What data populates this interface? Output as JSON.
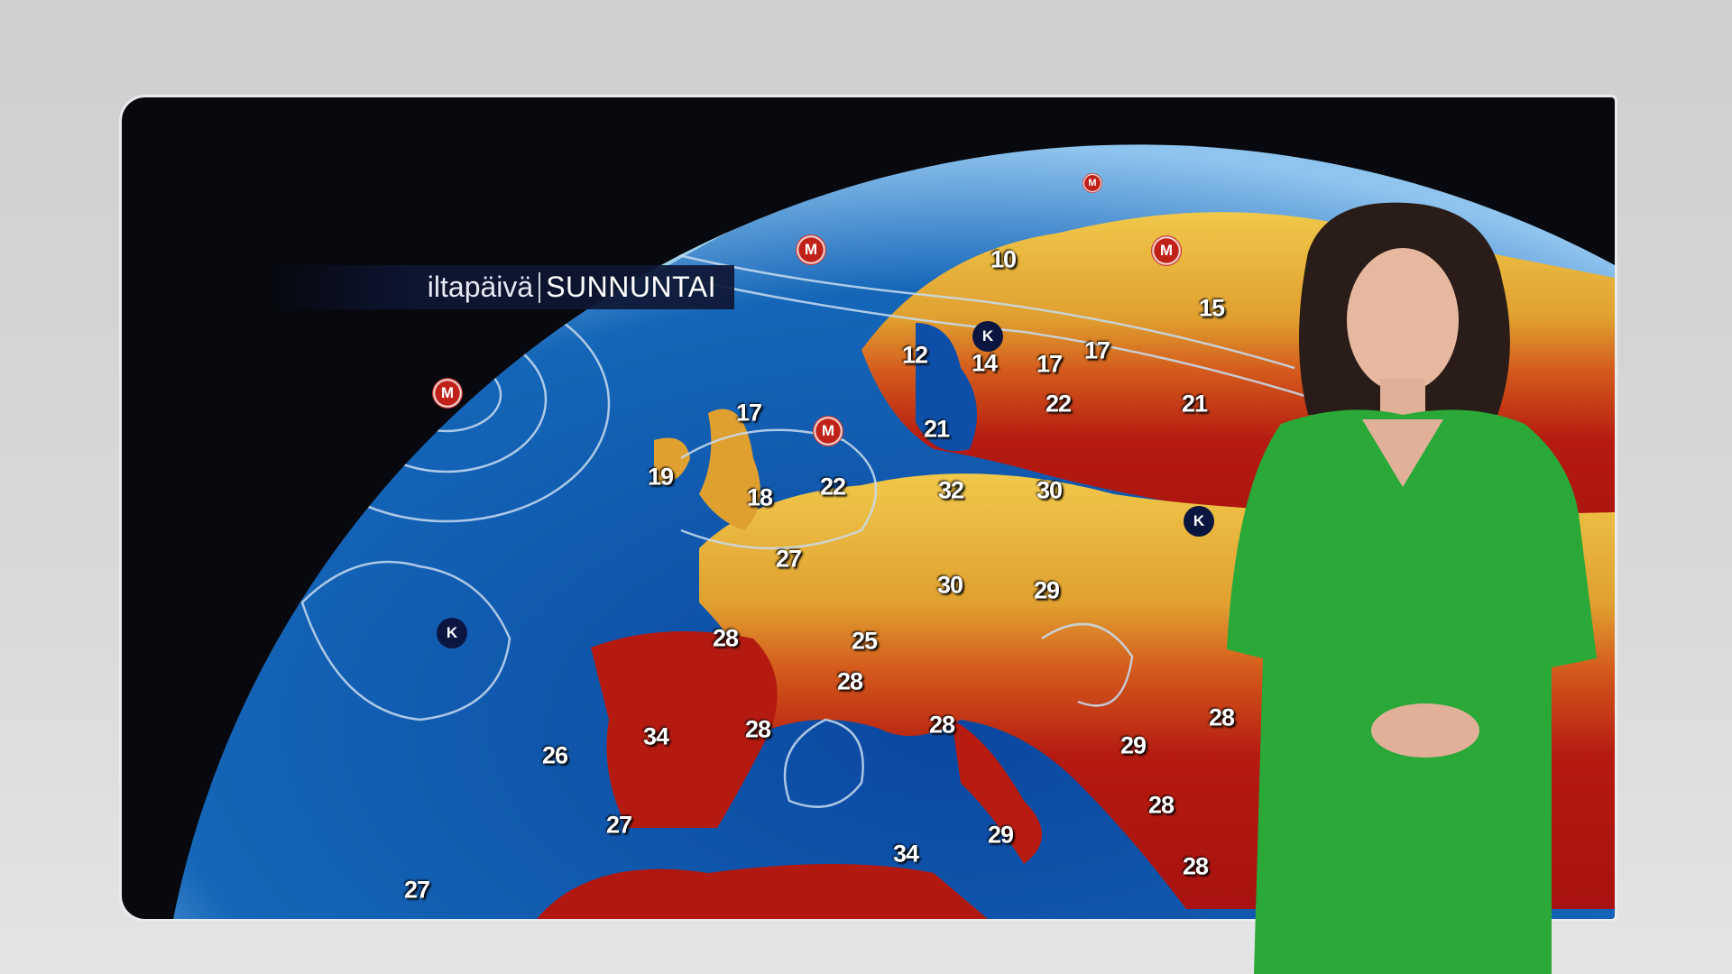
{
  "broadcast": {
    "time_of_day": "iltapäivä",
    "day": "SUNNUNTAI"
  },
  "colors": {
    "sea": "#0d4fa8",
    "land_cool": "#e8b838",
    "land_warm": "#d0501a",
    "land_hot": "#b01810",
    "isobar": "#c8dcf0",
    "presenter_dress": "#2aa838"
  },
  "pressure_systems": [
    {
      "label": "M",
      "type": "high"
    },
    {
      "label": "M",
      "type": "high"
    },
    {
      "label": "M",
      "type": "high"
    },
    {
      "label": "M",
      "type": "high"
    },
    {
      "label": "M",
      "type": "high"
    },
    {
      "label": "K",
      "type": "low"
    },
    {
      "label": "K",
      "type": "low"
    },
    {
      "label": "K",
      "type": "low"
    }
  ],
  "temperatures": [
    "10",
    "15",
    "12",
    "14",
    "17",
    "17",
    "22",
    "21",
    "17",
    "21",
    "19",
    "18",
    "22",
    "32",
    "30",
    "27",
    "30",
    "29",
    "28",
    "25",
    "28",
    "34",
    "28",
    "28",
    "26",
    "29",
    "28",
    "28",
    "29",
    "27",
    "34",
    "28",
    "27"
  ]
}
